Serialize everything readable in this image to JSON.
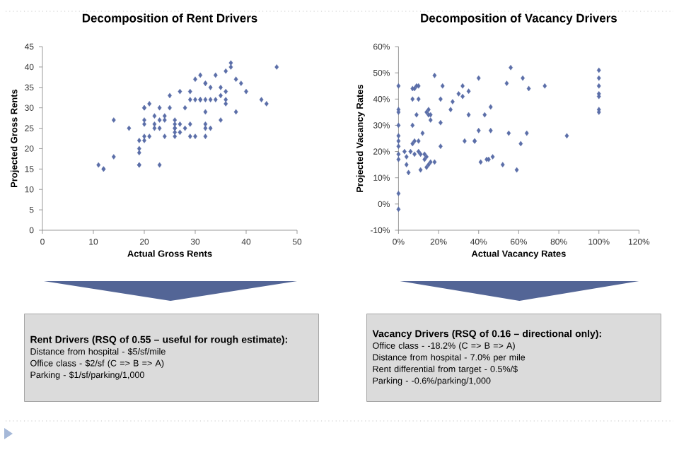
{
  "chart_data": [
    {
      "type": "scatter",
      "title": "Decomposition of Rent Drivers",
      "xlabel": "Actual Gross Rents",
      "ylabel": "Projected Gross Rents",
      "color": "#5b6ea8",
      "marker": "diamond",
      "x": [
        11,
        12,
        12,
        14,
        14,
        17,
        19,
        19,
        19,
        19,
        19,
        20,
        20,
        20,
        20,
        20,
        20,
        21,
        21,
        22,
        22,
        22,
        23,
        23,
        23,
        23,
        24,
        24,
        24,
        25,
        25,
        26,
        26,
        26,
        26,
        26,
        26,
        27,
        27,
        27,
        28,
        28,
        29,
        29,
        29,
        29,
        30,
        30,
        30,
        31,
        31,
        31,
        32,
        32,
        32,
        32,
        32,
        32,
        32,
        33,
        33,
        33,
        34,
        34,
        35,
        35,
        35,
        36,
        36,
        36,
        36,
        37,
        37,
        38,
        38,
        39,
        40,
        43,
        44,
        46
      ],
      "values": [
        16,
        15,
        15,
        27,
        18,
        25,
        20,
        16,
        16,
        19,
        22,
        30,
        26,
        27,
        30,
        22,
        23,
        23,
        31,
        28,
        26,
        25,
        27,
        16,
        30,
        25,
        23,
        27,
        28,
        33,
        30,
        27,
        25,
        23,
        26,
        24,
        25,
        34,
        26,
        24,
        25,
        30,
        26,
        34,
        23,
        32,
        32,
        23,
        37,
        38,
        32,
        32,
        29,
        26,
        25,
        36,
        36,
        32,
        23,
        35,
        25,
        32,
        32,
        38,
        27,
        33,
        35,
        32,
        34,
        31,
        39,
        40,
        41,
        29,
        37,
        36,
        34,
        32,
        31,
        40
      ],
      "xlim": [
        0,
        50
      ],
      "ylim": [
        0,
        45
      ],
      "xticks": [
        0,
        10,
        20,
        30,
        40,
        50
      ],
      "yticks": [
        0,
        5,
        10,
        15,
        20,
        25,
        30,
        35,
        40,
        45
      ],
      "annotations": [
        "Rent Drivers (RSQ of 0.55 – useful for rough estimate):",
        "Distance from hospital -  $5/sf/mile",
        "Office class -  $2/sf (C => B => A)",
        "Parking -  $1/sf/parking/1,000"
      ]
    },
    {
      "type": "scatter",
      "title": "Decomposition of Vacancy Drivers",
      "xlabel": "Actual Vacancy Rates",
      "ylabel": "Projected Vacancy Rates",
      "color": "#5b6ea8",
      "marker": "diamond",
      "x": [
        0,
        0,
        0,
        0,
        0,
        0,
        0,
        0,
        0,
        0,
        0,
        3,
        4,
        4,
        5,
        6,
        7,
        7,
        7,
        7,
        8,
        8,
        8,
        9,
        9,
        10,
        10,
        10,
        10,
        11,
        11,
        12,
        13,
        13,
        14,
        14,
        14,
        15,
        15,
        15,
        16,
        16,
        16,
        18,
        18,
        21,
        21,
        21,
        22,
        26,
        27,
        30,
        32,
        32,
        33,
        35,
        35,
        38,
        38,
        40,
        40,
        41,
        43,
        44,
        45,
        46,
        46,
        47,
        52,
        54,
        55,
        56,
        59,
        61,
        62,
        64,
        65,
        73,
        84,
        100,
        100,
        100,
        100,
        100,
        100,
        100
      ],
      "values": [
        45,
        36,
        35,
        30,
        26,
        24,
        22,
        19,
        17,
        4,
        -2,
        20,
        18,
        15,
        12,
        20,
        23,
        30,
        40,
        44,
        19,
        24,
        44,
        34,
        45,
        24,
        40,
        20,
        45,
        13,
        19,
        27,
        19,
        17,
        18,
        35,
        14,
        36,
        34,
        15,
        32,
        34,
        16,
        49,
        16,
        22,
        31,
        40,
        45,
        36,
        39,
        42,
        45,
        41,
        24,
        43,
        34,
        24,
        24,
        48,
        28,
        16,
        34,
        17,
        17,
        37,
        28,
        18,
        15,
        46,
        27,
        52,
        13,
        23,
        48,
        27,
        44,
        45,
        26,
        51,
        48,
        45,
        42,
        41,
        36,
        35
      ],
      "xlim": [
        0,
        120
      ],
      "ylim": [
        -10,
        60
      ],
      "xticks": [
        {
          "value": 0,
          "label": "0%"
        },
        {
          "value": 20,
          "label": "20%"
        },
        {
          "value": 40,
          "label": "40%"
        },
        {
          "value": 60,
          "label": "60%"
        },
        {
          "value": 80,
          "label": "80%"
        },
        {
          "value": 100,
          "label": "100%"
        },
        {
          "value": 120,
          "label": "120%"
        }
      ],
      "yticks": [
        {
          "value": -10,
          "label": "-10%"
        },
        {
          "value": 0,
          "label": "0%"
        },
        {
          "value": 10,
          "label": "10%"
        },
        {
          "value": 20,
          "label": "20%"
        },
        {
          "value": 30,
          "label": "30%"
        },
        {
          "value": 40,
          "label": "40%"
        },
        {
          "value": 50,
          "label": "50%"
        },
        {
          "value": 60,
          "label": "60%"
        }
      ],
      "annotations": [
        "Vacancy Drivers (RSQ of 0.16 – directional only):",
        "Office class -  -18.2% (C => B => A)",
        "Distance from hospital -  7.0% per mile",
        "Rent differential from target -  0.5%/$",
        "Parking -  -0.6%/parking/1,000"
      ]
    }
  ]
}
